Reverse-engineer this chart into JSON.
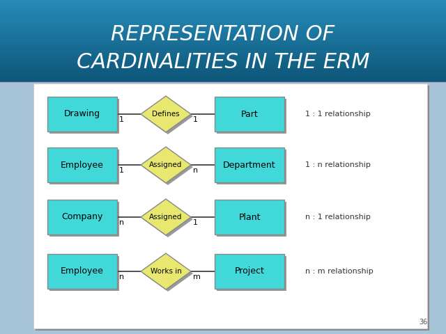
{
  "title_line1": "REPRESENTATION OF",
  "title_line2": "CARDINALITIES IN THE ERM",
  "title_bg_top": "#1a7aaa",
  "title_bg_bottom": "#0d5577",
  "title_text_color": "#ffffff",
  "bg_color": "#a8c4d8",
  "entity_fill": "#40d8d8",
  "entity_border": "#888888",
  "entity_shadow": "#888888",
  "relation_fill": "#e8e870",
  "relation_border": "#888888",
  "line_color": "#333333",
  "label_color": "#333333",
  "rows": [
    {
      "entity1": "Drawing",
      "relation": "Defines",
      "entity2": "Part",
      "card1": "1",
      "card2": "1",
      "label": "1 : 1 relationship"
    },
    {
      "entity1": "Employee",
      "relation": "Assigned",
      "entity2": "Department",
      "card1": "1",
      "card2": "n",
      "label": "1 : n relationship"
    },
    {
      "entity1": "Company",
      "relation": "Assigned",
      "entity2": "Plant",
      "card1": "n",
      "card2": "1",
      "label": "n : 1 relationship"
    },
    {
      "entity1": "Employee",
      "relation": "Works in",
      "entity2": "Project",
      "card1": "n",
      "card2": "m",
      "label": "n : m relationship"
    }
  ]
}
